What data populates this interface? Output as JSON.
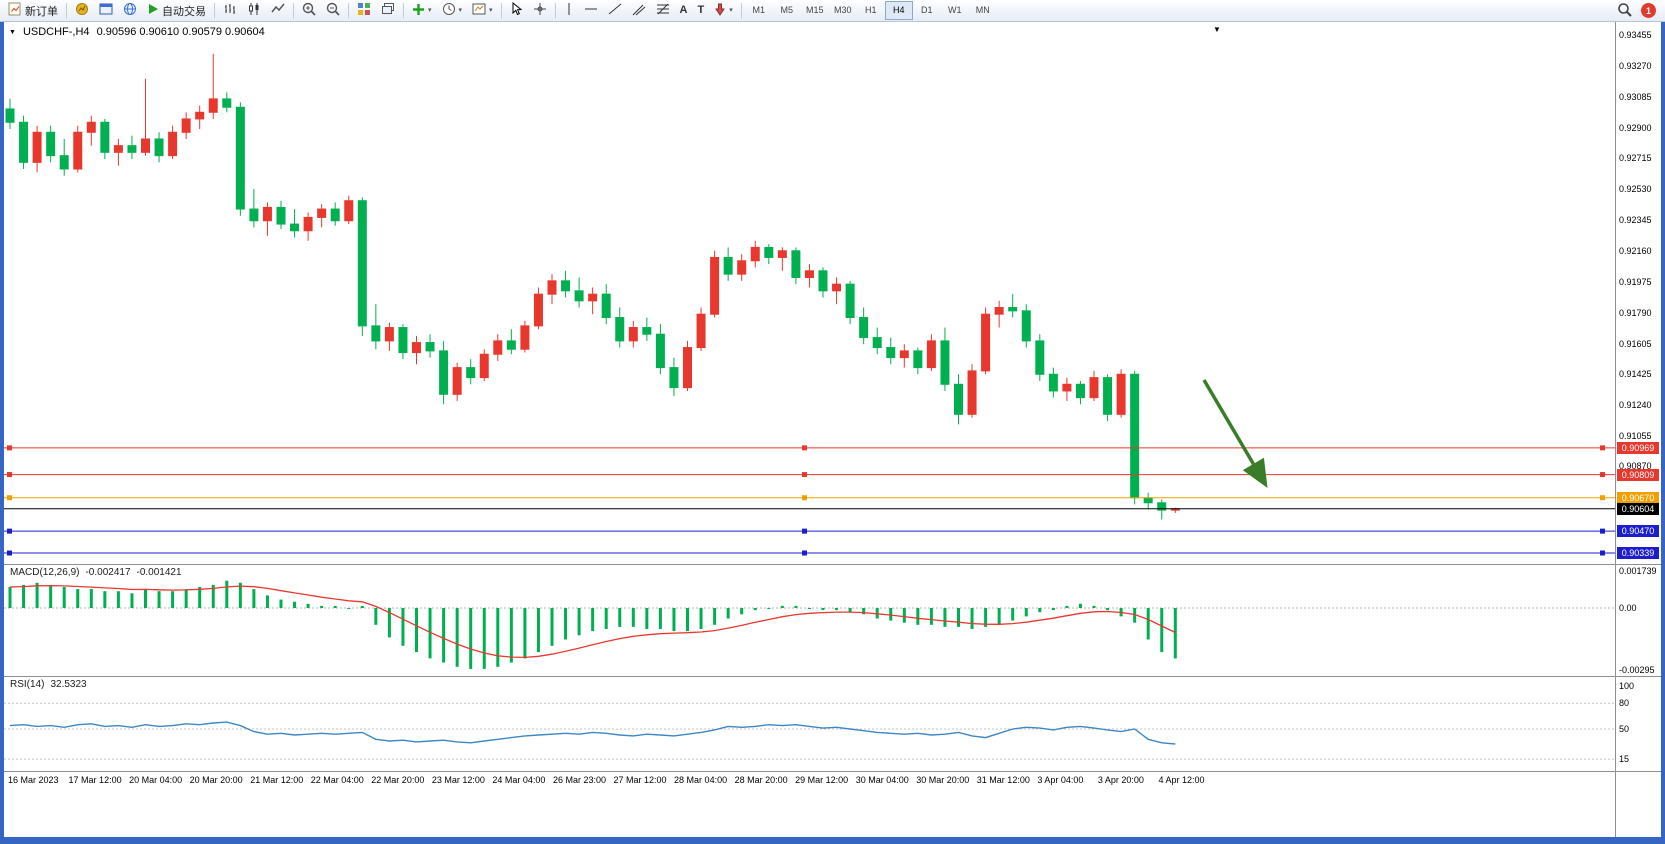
{
  "toolbar": {
    "new_order": "新订单",
    "autotrading": "自动交易",
    "timeframes": [
      "M1",
      "M5",
      "M15",
      "M30",
      "H1",
      "H4",
      "D1",
      "W1",
      "MN"
    ],
    "active_timeframe": "H4",
    "notification_count": "1"
  },
  "icons": {
    "caret": "▾",
    "title_caret": "▼",
    "shift_marker": "▼",
    "letter_a": "A",
    "letter_t": "T"
  },
  "chart": {
    "symbol_title": "USDCHF-,H4",
    "ohlc_text": "0.90596 0.90610 0.90579 0.90604",
    "price_axis_ticks": [
      "0.93455",
      "0.93270",
      "0.93085",
      "0.92900",
      "0.92715",
      "0.92530",
      "0.92345",
      "0.92160",
      "0.91975",
      "0.91790",
      "0.91605",
      "0.91425",
      "0.91240",
      "0.91055",
      "0.90870"
    ],
    "levels": [
      {
        "value": 0.90969,
        "label": "0.90969",
        "color": "#e8382d",
        "current": false
      },
      {
        "value": 0.90809,
        "label": "0.90809",
        "color": "#e8382d",
        "current": false
      },
      {
        "value": 0.9067,
        "label": "0.90670",
        "color": "#f0a000",
        "current": false
      },
      {
        "value": 0.90604,
        "label": "0.90604",
        "color": "#000000",
        "current": true
      },
      {
        "value": 0.9047,
        "label": "0.90470",
        "color": "#1d1dd0",
        "current": false
      },
      {
        "value": 0.90339,
        "label": "0.90339",
        "color": "#1d1dd0",
        "current": false
      }
    ],
    "colors": {
      "up": "#e8382d",
      "down": "#00b050",
      "arrow": "#3a7d27",
      "rsi_line": "#3c87c7",
      "macd_hist": "#00b050",
      "macd_signal": "#e8382d"
    },
    "time_axis": [
      "16 Mar 2023",
      "17 Mar 12:00",
      "20 Mar 04:00",
      "20 Mar 20:00",
      "21 Mar 12:00",
      "22 Mar 04:00",
      "22 Mar 20:00",
      "23 Mar 12:00",
      "24 Mar 04:00",
      "26 Mar 23:00",
      "27 Mar 12:00",
      "28 Mar 04:00",
      "28 Mar 20:00",
      "29 Mar 12:00",
      "30 Mar 04:00",
      "30 Mar 20:00",
      "31 Mar 12:00",
      "3 Apr 04:00",
      "3 Apr 20:00",
      "4 Apr 12:00"
    ],
    "candles": [
      [
        0.93,
        0.9306,
        0.9288,
        0.9292
      ],
      [
        0.9292,
        0.9296,
        0.9264,
        0.9268
      ],
      [
        0.9268,
        0.929,
        0.9262,
        0.9286
      ],
      [
        0.9286,
        0.929,
        0.9268,
        0.9272
      ],
      [
        0.9272,
        0.9282,
        0.926,
        0.9264
      ],
      [
        0.9264,
        0.929,
        0.9262,
        0.9286
      ],
      [
        0.9286,
        0.9296,
        0.9278,
        0.9292
      ],
      [
        0.9292,
        0.9294,
        0.927,
        0.9274
      ],
      [
        0.9274,
        0.9282,
        0.9266,
        0.9278
      ],
      [
        0.9278,
        0.9284,
        0.927,
        0.9274
      ],
      [
        0.9274,
        0.9318,
        0.9272,
        0.9282
      ],
      [
        0.9282,
        0.9286,
        0.9268,
        0.9272
      ],
      [
        0.9272,
        0.929,
        0.927,
        0.9286
      ],
      [
        0.9286,
        0.9298,
        0.9282,
        0.9294
      ],
      [
        0.9294,
        0.9302,
        0.9288,
        0.9298
      ],
      [
        0.9298,
        0.9333,
        0.9294,
        0.9306
      ],
      [
        0.9306,
        0.931,
        0.9298,
        0.9301
      ],
      [
        0.9301,
        0.9304,
        0.9236,
        0.924
      ],
      [
        0.924,
        0.9252,
        0.9229,
        0.9233
      ],
      [
        0.9233,
        0.9244,
        0.9224,
        0.9241
      ],
      [
        0.9241,
        0.9245,
        0.9228,
        0.9231
      ],
      [
        0.9231,
        0.924,
        0.9223,
        0.9227
      ],
      [
        0.9227,
        0.9238,
        0.9221,
        0.9235
      ],
      [
        0.9235,
        0.9243,
        0.9229,
        0.924
      ],
      [
        0.924,
        0.9244,
        0.923,
        0.9233
      ],
      [
        0.9233,
        0.9248,
        0.9231,
        0.9245
      ],
      [
        0.9245,
        0.9247,
        0.9164,
        0.917
      ],
      [
        0.917,
        0.9183,
        0.9156,
        0.9161
      ],
      [
        0.9161,
        0.9172,
        0.9155,
        0.9169
      ],
      [
        0.9169,
        0.9171,
        0.915,
        0.9154
      ],
      [
        0.9154,
        0.9164,
        0.9147,
        0.916
      ],
      [
        0.916,
        0.9165,
        0.9151,
        0.9155
      ],
      [
        0.9155,
        0.9161,
        0.9123,
        0.9129
      ],
      [
        0.9129,
        0.9148,
        0.9125,
        0.9145
      ],
      [
        0.9145,
        0.915,
        0.9135,
        0.9139
      ],
      [
        0.9139,
        0.9156,
        0.9137,
        0.9153
      ],
      [
        0.9153,
        0.9165,
        0.9149,
        0.9161
      ],
      [
        0.9161,
        0.9168,
        0.9153,
        0.9156
      ],
      [
        0.9156,
        0.9173,
        0.9154,
        0.917
      ],
      [
        0.917,
        0.9193,
        0.9168,
        0.9189
      ],
      [
        0.9189,
        0.9201,
        0.9183,
        0.9197
      ],
      [
        0.9197,
        0.9203,
        0.9187,
        0.9191
      ],
      [
        0.9191,
        0.9199,
        0.9181,
        0.9185
      ],
      [
        0.9185,
        0.9193,
        0.9177,
        0.9189
      ],
      [
        0.9189,
        0.9195,
        0.9171,
        0.9175
      ],
      [
        0.9175,
        0.9181,
        0.9157,
        0.9161
      ],
      [
        0.9161,
        0.9173,
        0.9157,
        0.9169
      ],
      [
        0.9169,
        0.9175,
        0.9161,
        0.9165
      ],
      [
        0.9165,
        0.9171,
        0.9141,
        0.9145
      ],
      [
        0.9145,
        0.9151,
        0.9128,
        0.9133
      ],
      [
        0.9133,
        0.9161,
        0.9131,
        0.9157
      ],
      [
        0.9157,
        0.9181,
        0.9155,
        0.9177
      ],
      [
        0.9177,
        0.9215,
        0.9175,
        0.9211
      ],
      [
        0.9211,
        0.9217,
        0.9197,
        0.9201
      ],
      [
        0.9201,
        0.9213,
        0.9197,
        0.9209
      ],
      [
        0.9209,
        0.9221,
        0.9205,
        0.9217
      ],
      [
        0.9217,
        0.9219,
        0.9207,
        0.9211
      ],
      [
        0.9211,
        0.9217,
        0.9203,
        0.9215
      ],
      [
        0.9215,
        0.9217,
        0.9195,
        0.9199
      ],
      [
        0.9199,
        0.9207,
        0.9193,
        0.9203
      ],
      [
        0.9203,
        0.9205,
        0.9187,
        0.9191
      ],
      [
        0.9191,
        0.9199,
        0.9183,
        0.9195
      ],
      [
        0.9195,
        0.9197,
        0.9171,
        0.9175
      ],
      [
        0.9175,
        0.9181,
        0.9159,
        0.9163
      ],
      [
        0.9163,
        0.9169,
        0.9153,
        0.9157
      ],
      [
        0.9157,
        0.9163,
        0.9147,
        0.9151
      ],
      [
        0.9151,
        0.9159,
        0.9145,
        0.9155
      ],
      [
        0.9155,
        0.9157,
        0.9141,
        0.9145
      ],
      [
        0.9145,
        0.9165,
        0.9143,
        0.9161
      ],
      [
        0.9161,
        0.9169,
        0.9131,
        0.9135
      ],
      [
        0.9135,
        0.9141,
        0.9111,
        0.9117
      ],
      [
        0.9117,
        0.9147,
        0.9115,
        0.9143
      ],
      [
        0.9143,
        0.9181,
        0.9141,
        0.9177
      ],
      [
        0.9177,
        0.9185,
        0.9169,
        0.9181
      ],
      [
        0.9181,
        0.9189,
        0.9175,
        0.9179
      ],
      [
        0.9179,
        0.9183,
        0.9157,
        0.9161
      ],
      [
        0.9161,
        0.9165,
        0.9137,
        0.9141
      ],
      [
        0.9141,
        0.9145,
        0.9127,
        0.9131
      ],
      [
        0.9131,
        0.9139,
        0.9125,
        0.9135
      ],
      [
        0.9135,
        0.9137,
        0.9123,
        0.9127
      ],
      [
        0.9127,
        0.9143,
        0.9125,
        0.9139
      ],
      [
        0.9139,
        0.9141,
        0.9113,
        0.9117
      ],
      [
        0.9117,
        0.9144,
        0.9115,
        0.9141
      ],
      [
        0.9141,
        0.9143,
        0.9063,
        0.9067
      ],
      [
        0.9067,
        0.907,
        0.906,
        0.9064
      ],
      [
        0.9064,
        0.9066,
        0.9054,
        0.90596
      ],
      [
        0.90596,
        0.9061,
        0.90579,
        0.90604
      ]
    ]
  },
  "macd": {
    "label": "MACD(12,26,9)",
    "main_value": "-0.002417",
    "signal_value": "-0.001421",
    "axis_ticks": [
      "0.001739",
      "0.00",
      "-0.00295"
    ],
    "values": [
      0.001,
      0.0011,
      0.0012,
      0.0011,
      0.001,
      0.0009,
      0.0009,
      0.0008,
      0.0008,
      0.0007,
      0.0009,
      0.0008,
      0.0008,
      0.0009,
      0.001,
      0.0011,
      0.0013,
      0.0012,
      0.0009,
      0.0006,
      0.0004,
      0.0003,
      0.0002,
      0.0001,
      0.0001,
      0,
      0.0001,
      -0.0008,
      -0.0014,
      -0.0018,
      -0.0021,
      -0.0024,
      -0.0026,
      -0.0028,
      -0.0029,
      -0.0029,
      -0.0028,
      -0.0026,
      -0.0024,
      -0.0021,
      -0.0018,
      -0.0015,
      -0.0013,
      -0.0011,
      -0.001,
      -0.0009,
      -0.0009,
      -0.001,
      -0.001,
      -0.0011,
      -0.0011,
      -0.001,
      -0.0008,
      -0.0005,
      -0.0003,
      -0.0001,
      0,
      0.0001,
      0.0001,
      0,
      -0.0001,
      -0.0001,
      -0.0002,
      -0.0003,
      -0.0005,
      -0.0006,
      -0.0007,
      -0.0008,
      -0.0008,
      -0.0009,
      -0.0009,
      -0.001,
      -0.0009,
      -0.0008,
      -0.0006,
      -0.0004,
      -0.0002,
      -0.0001,
      0.0001,
      0.0002,
      0.0001,
      -0.0001,
      -0.0004,
      -0.0007,
      -0.0015,
      -0.0021,
      -0.0024
    ]
  },
  "rsi": {
    "label": "RSI(14)",
    "value": "32.5323",
    "axis_ticks": [
      100,
      80,
      50,
      15
    ],
    "levels": [
      80,
      50,
      15
    ],
    "values": [
      54,
      55,
      53,
      54,
      52,
      55,
      56,
      53,
      54,
      52,
      55,
      53,
      54,
      56,
      55,
      57,
      58,
      54,
      47,
      44,
      45,
      43,
      44,
      45,
      44,
      45,
      46,
      38,
      36,
      37,
      35,
      36,
      37,
      35,
      34,
      36,
      38,
      40,
      42,
      43,
      44,
      45,
      44,
      46,
      45,
      43,
      42,
      44,
      43,
      42,
      44,
      46,
      49,
      53,
      52,
      53,
      55,
      54,
      55,
      53,
      51,
      52,
      50,
      48,
      46,
      45,
      44,
      45,
      43,
      44,
      46,
      42,
      40,
      45,
      50,
      52,
      51,
      49,
      52,
      53,
      51,
      49,
      47,
      50,
      38,
      34,
      32.5
    ]
  }
}
